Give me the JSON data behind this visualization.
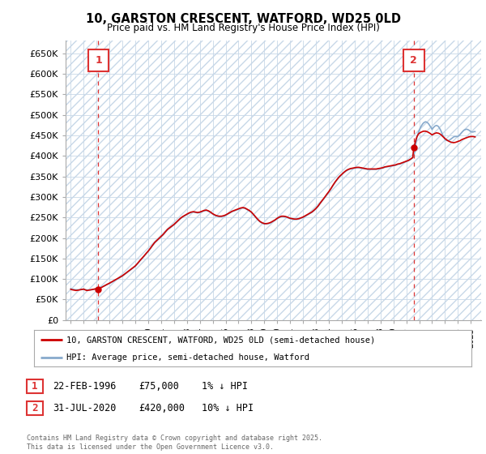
{
  "title": "10, GARSTON CRESCENT, WATFORD, WD25 0LD",
  "subtitle": "Price paid vs. HM Land Registry's House Price Index (HPI)",
  "ylim": [
    0,
    680000
  ],
  "yticks": [
    0,
    50000,
    100000,
    150000,
    200000,
    250000,
    300000,
    350000,
    400000,
    450000,
    500000,
    550000,
    600000,
    650000
  ],
  "ytick_labels": [
    "£0",
    "£50K",
    "£100K",
    "£150K",
    "£200K",
    "£250K",
    "£300K",
    "£350K",
    "£400K",
    "£450K",
    "£500K",
    "£550K",
    "£600K",
    "£650K"
  ],
  "xlim_start": 1993.6,
  "xlim_end": 2025.8,
  "background_color": "#ffffff",
  "grid_color": "#c8d8e8",
  "hatch_color": "#c8d8e8",
  "price_paid_color": "#cc0000",
  "hpi_color": "#88aacc",
  "point1_x": 1996.14,
  "point1_y": 75000,
  "point2_x": 2020.58,
  "point2_y": 420000,
  "vline_color": "#dd3333",
  "legend_price_label": "10, GARSTON CRESCENT, WATFORD, WD25 0LD (semi-detached house)",
  "legend_hpi_label": "HPI: Average price, semi-detached house, Watford",
  "footnote": "Contains HM Land Registry data © Crown copyright and database right 2025.\nThis data is licensed under the Open Government Licence v3.0.",
  "price_paid_data": [
    [
      1994.0,
      75000
    ],
    [
      1994.08,
      74000
    ],
    [
      1994.17,
      73500
    ],
    [
      1994.25,
      73000
    ],
    [
      1994.33,
      72500
    ],
    [
      1994.42,
      72000
    ],
    [
      1994.5,
      72500
    ],
    [
      1994.58,
      73000
    ],
    [
      1994.67,
      73500
    ],
    [
      1994.75,
      74000
    ],
    [
      1994.83,
      74500
    ],
    [
      1994.92,
      75000
    ],
    [
      1995.0,
      75500
    ],
    [
      1995.08,
      74000
    ],
    [
      1995.17,
      73000
    ],
    [
      1995.25,
      72000
    ],
    [
      1995.33,
      72500
    ],
    [
      1995.42,
      73000
    ],
    [
      1995.5,
      73500
    ],
    [
      1995.58,
      74000
    ],
    [
      1995.67,
      74500
    ],
    [
      1995.75,
      75000
    ],
    [
      1995.83,
      75500
    ],
    [
      1995.92,
      76000
    ],
    [
      1996.0,
      76000
    ],
    [
      1996.08,
      75500
    ],
    [
      1996.14,
      75000
    ],
    [
      1996.25,
      77000
    ],
    [
      1996.42,
      80000
    ],
    [
      1996.58,
      83000
    ],
    [
      1996.75,
      86000
    ],
    [
      1997.0,
      90000
    ],
    [
      1997.17,
      93000
    ],
    [
      1997.33,
      96000
    ],
    [
      1997.5,
      99000
    ],
    [
      1997.67,
      102000
    ],
    [
      1997.83,
      105000
    ],
    [
      1998.0,
      108000
    ],
    [
      1998.17,
      112000
    ],
    [
      1998.33,
      116000
    ],
    [
      1998.5,
      120000
    ],
    [
      1998.67,
      124000
    ],
    [
      1998.83,
      128000
    ],
    [
      1999.0,
      132000
    ],
    [
      1999.17,
      138000
    ],
    [
      1999.33,
      144000
    ],
    [
      1999.5,
      150000
    ],
    [
      1999.67,
      156000
    ],
    [
      1999.83,
      162000
    ],
    [
      2000.0,
      168000
    ],
    [
      2000.17,
      175000
    ],
    [
      2000.33,
      182000
    ],
    [
      2000.5,
      189000
    ],
    [
      2000.67,
      194000
    ],
    [
      2000.83,
      199000
    ],
    [
      2001.0,
      204000
    ],
    [
      2001.17,
      209000
    ],
    [
      2001.33,
      215000
    ],
    [
      2001.5,
      221000
    ],
    [
      2001.67,
      225000
    ],
    [
      2001.83,
      229000
    ],
    [
      2002.0,
      233000
    ],
    [
      2002.17,
      238000
    ],
    [
      2002.33,
      243000
    ],
    [
      2002.5,
      248000
    ],
    [
      2002.67,
      252000
    ],
    [
      2002.83,
      255000
    ],
    [
      2003.0,
      258000
    ],
    [
      2003.17,
      261000
    ],
    [
      2003.33,
      263000
    ],
    [
      2003.5,
      264000
    ],
    [
      2003.67,
      263000
    ],
    [
      2003.83,
      262000
    ],
    [
      2004.0,
      263000
    ],
    [
      2004.17,
      265000
    ],
    [
      2004.33,
      267000
    ],
    [
      2004.5,
      268000
    ],
    [
      2004.67,
      266000
    ],
    [
      2004.83,
      263000
    ],
    [
      2005.0,
      259000
    ],
    [
      2005.17,
      256000
    ],
    [
      2005.33,
      254000
    ],
    [
      2005.5,
      253000
    ],
    [
      2005.67,
      253000
    ],
    [
      2005.83,
      254000
    ],
    [
      2006.0,
      256000
    ],
    [
      2006.17,
      259000
    ],
    [
      2006.33,
      262000
    ],
    [
      2006.5,
      265000
    ],
    [
      2006.67,
      267000
    ],
    [
      2006.83,
      269000
    ],
    [
      2007.0,
      271000
    ],
    [
      2007.17,
      273000
    ],
    [
      2007.33,
      274000
    ],
    [
      2007.5,
      273000
    ],
    [
      2007.67,
      270000
    ],
    [
      2007.83,
      267000
    ],
    [
      2008.0,
      263000
    ],
    [
      2008.17,
      257000
    ],
    [
      2008.33,
      251000
    ],
    [
      2008.5,
      245000
    ],
    [
      2008.67,
      240000
    ],
    [
      2008.83,
      237000
    ],
    [
      2009.0,
      235000
    ],
    [
      2009.17,
      235000
    ],
    [
      2009.33,
      236000
    ],
    [
      2009.5,
      238000
    ],
    [
      2009.67,
      241000
    ],
    [
      2009.83,
      244000
    ],
    [
      2010.0,
      248000
    ],
    [
      2010.17,
      251000
    ],
    [
      2010.33,
      253000
    ],
    [
      2010.5,
      253000
    ],
    [
      2010.67,
      252000
    ],
    [
      2010.83,
      250000
    ],
    [
      2011.0,
      248000
    ],
    [
      2011.17,
      247000
    ],
    [
      2011.33,
      246000
    ],
    [
      2011.5,
      246000
    ],
    [
      2011.67,
      247000
    ],
    [
      2011.83,
      249000
    ],
    [
      2012.0,
      251000
    ],
    [
      2012.17,
      254000
    ],
    [
      2012.33,
      257000
    ],
    [
      2012.5,
      260000
    ],
    [
      2012.67,
      263000
    ],
    [
      2012.83,
      267000
    ],
    [
      2013.0,
      272000
    ],
    [
      2013.17,
      278000
    ],
    [
      2013.33,
      285000
    ],
    [
      2013.5,
      292000
    ],
    [
      2013.67,
      299000
    ],
    [
      2013.83,
      306000
    ],
    [
      2014.0,
      313000
    ],
    [
      2014.17,
      321000
    ],
    [
      2014.33,
      329000
    ],
    [
      2014.5,
      337000
    ],
    [
      2014.67,
      344000
    ],
    [
      2014.83,
      350000
    ],
    [
      2015.0,
      355000
    ],
    [
      2015.17,
      360000
    ],
    [
      2015.33,
      364000
    ],
    [
      2015.5,
      367000
    ],
    [
      2015.67,
      369000
    ],
    [
      2015.83,
      370000
    ],
    [
      2016.0,
      371000
    ],
    [
      2016.17,
      372000
    ],
    [
      2016.33,
      372000
    ],
    [
      2016.5,
      371000
    ],
    [
      2016.67,
      370000
    ],
    [
      2016.83,
      369000
    ],
    [
      2017.0,
      368000
    ],
    [
      2017.17,
      368000
    ],
    [
      2017.33,
      368000
    ],
    [
      2017.5,
      368000
    ],
    [
      2017.67,
      368000
    ],
    [
      2017.83,
      369000
    ],
    [
      2018.0,
      370000
    ],
    [
      2018.17,
      371000
    ],
    [
      2018.33,
      373000
    ],
    [
      2018.5,
      374000
    ],
    [
      2018.67,
      375000
    ],
    [
      2018.83,
      376000
    ],
    [
      2019.0,
      377000
    ],
    [
      2019.17,
      378000
    ],
    [
      2019.33,
      380000
    ],
    [
      2019.5,
      381000
    ],
    [
      2019.67,
      383000
    ],
    [
      2019.83,
      385000
    ],
    [
      2020.0,
      387000
    ],
    [
      2020.17,
      389000
    ],
    [
      2020.33,
      392000
    ],
    [
      2020.5,
      396000
    ],
    [
      2020.58,
      420000
    ],
    [
      2020.67,
      430000
    ],
    [
      2020.75,
      440000
    ],
    [
      2020.83,
      447000
    ],
    [
      2020.92,
      452000
    ],
    [
      2021.0,
      455000
    ],
    [
      2021.17,
      458000
    ],
    [
      2021.33,
      460000
    ],
    [
      2021.5,
      460000
    ],
    [
      2021.67,
      458000
    ],
    [
      2021.83,
      455000
    ],
    [
      2022.0,
      451000
    ],
    [
      2022.17,
      454000
    ],
    [
      2022.33,
      456000
    ],
    [
      2022.5,
      455000
    ],
    [
      2022.67,
      452000
    ],
    [
      2022.83,
      447000
    ],
    [
      2023.0,
      442000
    ],
    [
      2023.17,
      438000
    ],
    [
      2023.33,
      435000
    ],
    [
      2023.5,
      433000
    ],
    [
      2023.67,
      432000
    ],
    [
      2023.83,
      433000
    ],
    [
      2024.0,
      435000
    ],
    [
      2024.17,
      437000
    ],
    [
      2024.33,
      440000
    ],
    [
      2024.5,
      442000
    ],
    [
      2024.67,
      444000
    ],
    [
      2024.83,
      446000
    ],
    [
      2025.0,
      447000
    ],
    [
      2025.17,
      447000
    ],
    [
      2025.33,
      446000
    ]
  ],
  "hpi_data": [
    [
      1994.0,
      76000
    ],
    [
      1994.08,
      75500
    ],
    [
      1994.17,
      75000
    ],
    [
      1994.25,
      74500
    ],
    [
      1994.33,
      74000
    ],
    [
      1994.42,
      73800
    ],
    [
      1994.5,
      73700
    ],
    [
      1994.58,
      73600
    ],
    [
      1994.67,
      73700
    ],
    [
      1994.75,
      73900
    ],
    [
      1994.83,
      74200
    ],
    [
      1994.92,
      74600
    ],
    [
      1995.0,
      75000
    ],
    [
      1995.08,
      74500
    ],
    [
      1995.17,
      74000
    ],
    [
      1995.25,
      73500
    ],
    [
      1995.33,
      73200
    ],
    [
      1995.42,
      73100
    ],
    [
      1995.5,
      73200
    ],
    [
      1995.58,
      73500
    ],
    [
      1995.67,
      74000
    ],
    [
      1995.75,
      74600
    ],
    [
      1995.83,
      75300
    ],
    [
      1995.92,
      76100
    ],
    [
      1996.0,
      77000
    ],
    [
      1996.17,
      78500
    ],
    [
      1996.33,
      80000
    ],
    [
      1996.5,
      82000
    ],
    [
      1996.67,
      84000
    ],
    [
      1996.83,
      86500
    ],
    [
      1997.0,
      89000
    ],
    [
      1997.17,
      92000
    ],
    [
      1997.33,
      95000
    ],
    [
      1997.5,
      98000
    ],
    [
      1997.67,
      101000
    ],
    [
      1997.83,
      104000
    ],
    [
      1998.0,
      107000
    ],
    [
      1998.17,
      111000
    ],
    [
      1998.33,
      115000
    ],
    [
      1998.5,
      119000
    ],
    [
      1998.67,
      123000
    ],
    [
      1998.83,
      127000
    ],
    [
      1999.0,
      131000
    ],
    [
      1999.17,
      137000
    ],
    [
      1999.33,
      143000
    ],
    [
      1999.5,
      149000
    ],
    [
      1999.67,
      155000
    ],
    [
      1999.83,
      161000
    ],
    [
      2000.0,
      167000
    ],
    [
      2000.17,
      174000
    ],
    [
      2000.33,
      181000
    ],
    [
      2000.5,
      188000
    ],
    [
      2000.67,
      193000
    ],
    [
      2000.83,
      198000
    ],
    [
      2001.0,
      203000
    ],
    [
      2001.17,
      208000
    ],
    [
      2001.33,
      214000
    ],
    [
      2001.5,
      220000
    ],
    [
      2001.67,
      224000
    ],
    [
      2001.83,
      228000
    ],
    [
      2002.0,
      232000
    ],
    [
      2002.17,
      237000
    ],
    [
      2002.33,
      242000
    ],
    [
      2002.5,
      247000
    ],
    [
      2002.67,
      251000
    ],
    [
      2002.83,
      254000
    ],
    [
      2003.0,
      257000
    ],
    [
      2003.17,
      260000
    ],
    [
      2003.33,
      262000
    ],
    [
      2003.5,
      263000
    ],
    [
      2003.67,
      262000
    ],
    [
      2003.83,
      261000
    ],
    [
      2004.0,
      262000
    ],
    [
      2004.17,
      264000
    ],
    [
      2004.33,
      266000
    ],
    [
      2004.5,
      267000
    ],
    [
      2004.67,
      265000
    ],
    [
      2004.83,
      262000
    ],
    [
      2005.0,
      258000
    ],
    [
      2005.17,
      255000
    ],
    [
      2005.33,
      253000
    ],
    [
      2005.5,
      252000
    ],
    [
      2005.67,
      252000
    ],
    [
      2005.83,
      253000
    ],
    [
      2006.0,
      255000
    ],
    [
      2006.17,
      258000
    ],
    [
      2006.33,
      261000
    ],
    [
      2006.5,
      264000
    ],
    [
      2006.67,
      266000
    ],
    [
      2006.83,
      268000
    ],
    [
      2007.0,
      270000
    ],
    [
      2007.17,
      272000
    ],
    [
      2007.33,
      273000
    ],
    [
      2007.5,
      272000
    ],
    [
      2007.67,
      269000
    ],
    [
      2007.83,
      266000
    ],
    [
      2008.0,
      262000
    ],
    [
      2008.17,
      256000
    ],
    [
      2008.33,
      250000
    ],
    [
      2008.5,
      244000
    ],
    [
      2008.67,
      239000
    ],
    [
      2008.83,
      236000
    ],
    [
      2009.0,
      234000
    ],
    [
      2009.17,
      234000
    ],
    [
      2009.33,
      235000
    ],
    [
      2009.5,
      237000
    ],
    [
      2009.67,
      240000
    ],
    [
      2009.83,
      243000
    ],
    [
      2010.0,
      247000
    ],
    [
      2010.17,
      250000
    ],
    [
      2010.33,
      252000
    ],
    [
      2010.5,
      252000
    ],
    [
      2010.67,
      251000
    ],
    [
      2010.83,
      249000
    ],
    [
      2011.0,
      247000
    ],
    [
      2011.17,
      246000
    ],
    [
      2011.33,
      245000
    ],
    [
      2011.5,
      245000
    ],
    [
      2011.67,
      246000
    ],
    [
      2011.83,
      248000
    ],
    [
      2012.0,
      250000
    ],
    [
      2012.17,
      253000
    ],
    [
      2012.33,
      256000
    ],
    [
      2012.5,
      259000
    ],
    [
      2012.67,
      262000
    ],
    [
      2012.83,
      266000
    ],
    [
      2013.0,
      271000
    ],
    [
      2013.17,
      277000
    ],
    [
      2013.33,
      284000
    ],
    [
      2013.5,
      291000
    ],
    [
      2013.67,
      298000
    ],
    [
      2013.83,
      305000
    ],
    [
      2014.0,
      312000
    ],
    [
      2014.17,
      320000
    ],
    [
      2014.33,
      328000
    ],
    [
      2014.5,
      336000
    ],
    [
      2014.67,
      343000
    ],
    [
      2014.83,
      349000
    ],
    [
      2015.0,
      354000
    ],
    [
      2015.17,
      359000
    ],
    [
      2015.33,
      363000
    ],
    [
      2015.5,
      366000
    ],
    [
      2015.67,
      368000
    ],
    [
      2015.83,
      369000
    ],
    [
      2016.0,
      370000
    ],
    [
      2016.17,
      371000
    ],
    [
      2016.33,
      371000
    ],
    [
      2016.5,
      370000
    ],
    [
      2016.67,
      369000
    ],
    [
      2016.83,
      368000
    ],
    [
      2017.0,
      367000
    ],
    [
      2017.17,
      367000
    ],
    [
      2017.33,
      367000
    ],
    [
      2017.5,
      367000
    ],
    [
      2017.67,
      367000
    ],
    [
      2017.83,
      368000
    ],
    [
      2018.0,
      369000
    ],
    [
      2018.17,
      370000
    ],
    [
      2018.33,
      372000
    ],
    [
      2018.5,
      373000
    ],
    [
      2018.67,
      374000
    ],
    [
      2018.83,
      375000
    ],
    [
      2019.0,
      376000
    ],
    [
      2019.17,
      377000
    ],
    [
      2019.33,
      379000
    ],
    [
      2019.5,
      380000
    ],
    [
      2019.67,
      382000
    ],
    [
      2019.83,
      384000
    ],
    [
      2020.0,
      386000
    ],
    [
      2020.17,
      388000
    ],
    [
      2020.33,
      391000
    ],
    [
      2020.5,
      395000
    ],
    [
      2020.58,
      398000
    ],
    [
      2020.67,
      415000
    ],
    [
      2020.75,
      432000
    ],
    [
      2020.83,
      445000
    ],
    [
      2020.92,
      455000
    ],
    [
      2021.0,
      462000
    ],
    [
      2021.08,
      468000
    ],
    [
      2021.17,
      473000
    ],
    [
      2021.25,
      477000
    ],
    [
      2021.33,
      480000
    ],
    [
      2021.42,
      482000
    ],
    [
      2021.5,
      483000
    ],
    [
      2021.58,
      482000
    ],
    [
      2021.67,
      480000
    ],
    [
      2021.75,
      477000
    ],
    [
      2021.83,
      473000
    ],
    [
      2021.92,
      469000
    ],
    [
      2022.0,
      464000
    ],
    [
      2022.08,
      468000
    ],
    [
      2022.17,
      471000
    ],
    [
      2022.25,
      473000
    ],
    [
      2022.33,
      474000
    ],
    [
      2022.42,
      473000
    ],
    [
      2022.5,
      471000
    ],
    [
      2022.58,
      467000
    ],
    [
      2022.67,
      462000
    ],
    [
      2022.75,
      456000
    ],
    [
      2022.83,
      450000
    ],
    [
      2022.92,
      445000
    ],
    [
      2023.0,
      440000
    ],
    [
      2023.08,
      438000
    ],
    [
      2023.17,
      437000
    ],
    [
      2023.25,
      437000
    ],
    [
      2023.33,
      438000
    ],
    [
      2023.42,
      440000
    ],
    [
      2023.5,
      442000
    ],
    [
      2023.58,
      444000
    ],
    [
      2023.67,
      446000
    ],
    [
      2023.75,
      447000
    ],
    [
      2023.83,
      447000
    ],
    [
      2023.92,
      447000
    ],
    [
      2024.0,
      447000
    ],
    [
      2024.08,
      449000
    ],
    [
      2024.17,
      452000
    ],
    [
      2024.25,
      455000
    ],
    [
      2024.33,
      458000
    ],
    [
      2024.42,
      461000
    ],
    [
      2024.5,
      463000
    ],
    [
      2024.58,
      464000
    ],
    [
      2024.67,
      465000
    ],
    [
      2024.75,
      464000
    ],
    [
      2024.83,
      463000
    ],
    [
      2024.92,
      461000
    ],
    [
      2025.0,
      459000
    ],
    [
      2025.08,
      458000
    ],
    [
      2025.17,
      458000
    ],
    [
      2025.25,
      459000
    ],
    [
      2025.33,
      459000
    ]
  ]
}
